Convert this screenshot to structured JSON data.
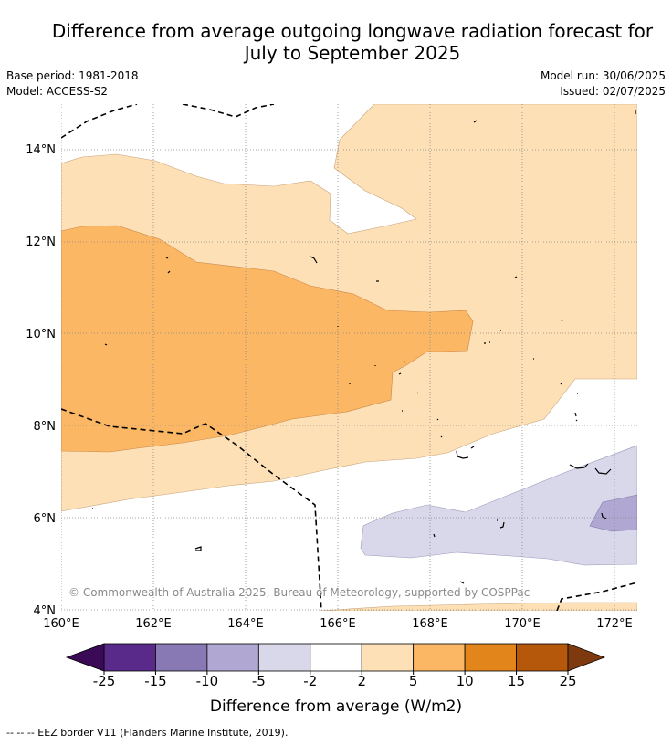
{
  "title_line1": "Difference from average outgoing longwave radiation forecast for",
  "title_line2": "July to September 2025",
  "base_period": "Base period: 1981-2018",
  "model": "Model: ACCESS-S2",
  "model_run": "Model run: 30/06/2025",
  "issued": "Issued: 02/07/2025",
  "copyright": "© Commonwealth of Australia 2025, Bureau of Meteorology, supported by COSPPac",
  "lon_ticks": [
    "160°E",
    "162°E",
    "164°E",
    "166°E",
    "168°E",
    "170°E",
    "172°E"
  ],
  "lat_ticks": [
    "14°N",
    "12°N",
    "10°N",
    "8°N",
    "6°N",
    "4°N"
  ],
  "colorbar": {
    "label": "Difference from average (W/m2)",
    "ticks": [
      "-25",
      "-15",
      "-10",
      "-5",
      "-2",
      "2",
      "5",
      "10",
      "15",
      "25"
    ],
    "colors": [
      "#5a2a8a",
      "#8878b4",
      "#b0a8d2",
      "#d8d8ea",
      "#ffffff",
      "#fde0b6",
      "#fbb764",
      "#e2851a",
      "#b5580c"
    ],
    "under_color": "#3b0a56",
    "over_color": "#7e3a0e"
  },
  "footnote": "--  --  -- EEZ border V11 (Flanders Marine Institute, 2019)."
}
